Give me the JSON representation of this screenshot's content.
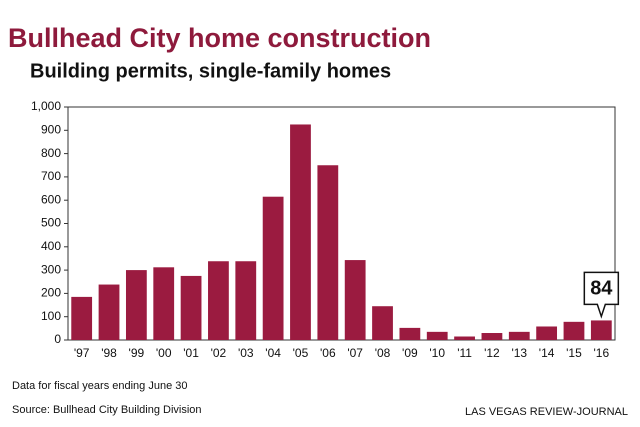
{
  "chart_data": {
    "type": "bar",
    "title": "Bullhead City home construction",
    "subtitle": "Building permits, single-family homes",
    "categories": [
      "'97",
      "'98",
      "'99",
      "'00",
      "'01",
      "'02",
      "'03",
      "'04",
      "'05",
      "'06",
      "'07",
      "'08",
      "'09",
      "'10",
      "'11",
      "'12",
      "'13",
      "'14",
      "'15",
      "'16"
    ],
    "values": [
      185,
      238,
      300,
      312,
      275,
      338,
      338,
      615,
      925,
      750,
      343,
      145,
      52,
      35,
      15,
      30,
      35,
      58,
      78,
      84
    ],
    "color": "#9b1b40",
    "title_color": "#8e1a3c",
    "ylim": [
      0,
      1000
    ],
    "yticks": [
      0,
      100,
      200,
      300,
      400,
      500,
      600,
      700,
      800,
      900,
      {
        "value": 1000,
        "label": "1,000"
      }
    ],
    "grid": false,
    "highlight_index": 19,
    "note": "Data for fiscal years ending June 30",
    "source": "Source: Bullhead City Building Division",
    "credit": "LAS VEGAS REVIEW-JOURNAL"
  }
}
